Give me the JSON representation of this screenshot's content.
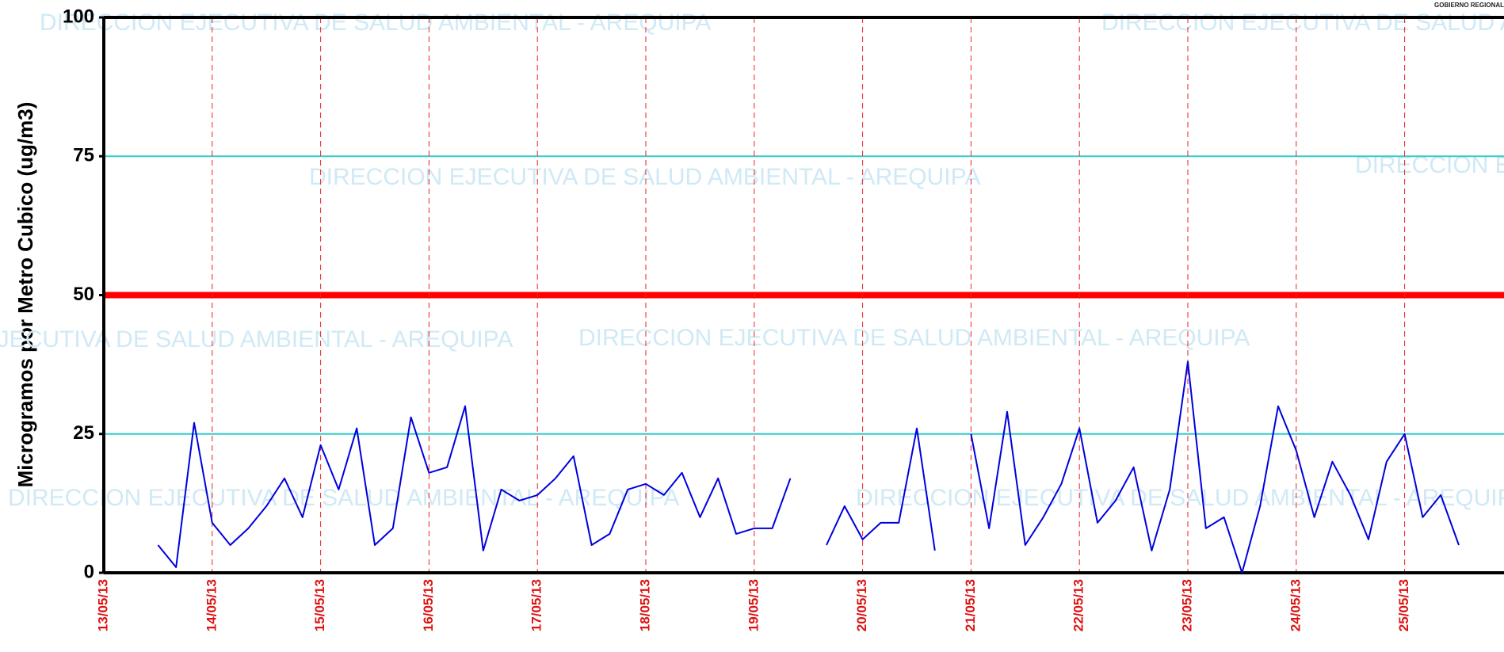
{
  "chart_data": {
    "type": "line",
    "ylabel": "Microgramos por Metro Cubico (ug/m3)",
    "watermark": "DIRECCION EJECUTIVA DE SALUD AMBIENTAL - AREQUIPA",
    "logo_text": "GOBIERNO REGIONAL",
    "categories": [
      "13/05/13",
      null,
      null,
      null,
      null,
      null,
      "14/05/13",
      null,
      null,
      null,
      null,
      null,
      "15/05/13",
      null,
      null,
      null,
      null,
      null,
      "16/05/13",
      null,
      null,
      null,
      null,
      null,
      "17/05/13",
      null,
      null,
      null,
      null,
      null,
      "18/05/13",
      null,
      null,
      null,
      null,
      null,
      "19/05/13",
      null,
      null,
      null,
      null,
      null,
      "20/05/13",
      null,
      null,
      null,
      null,
      null,
      "21/05/13",
      null,
      null,
      null,
      null,
      null,
      "22/05/13",
      null,
      null,
      null,
      null,
      null,
      "23/05/13",
      null,
      null,
      null,
      null,
      null,
      "24/05/13",
      null,
      null,
      null,
      null,
      null,
      "25/05/13",
      null,
      null,
      null,
      null,
      null
    ],
    "series": [
      {
        "color": "#0000dd",
        "values": [
          null,
          null,
          null,
          5,
          1,
          27,
          9,
          5,
          8,
          12,
          17,
          10,
          23,
          15,
          26,
          5,
          8,
          28,
          18,
          19,
          30,
          4,
          15,
          13,
          14,
          17,
          21,
          5,
          7,
          15,
          16,
          14,
          18,
          10,
          17,
          7,
          8,
          8,
          17,
          null,
          5,
          12,
          6,
          9,
          9,
          26,
          4,
          null,
          25,
          8,
          29,
          5,
          10,
          16,
          26,
          9,
          13,
          19,
          4,
          15,
          38,
          8,
          10,
          0,
          12,
          30,
          22,
          10,
          20,
          14,
          6,
          20,
          25,
          10,
          14,
          5,
          null,
          null
        ]
      }
    ],
    "reference_lines": [
      {
        "value": 50,
        "color": "#ff0000"
      },
      {
        "value": 25,
        "color": "#33cccc"
      },
      {
        "value": 75,
        "color": "#33cccc"
      }
    ],
    "ylim": [
      0,
      100
    ],
    "yticks": [
      0,
      25,
      50,
      75,
      100
    ],
    "xgrid_color": "#ee2222",
    "tick_label_color": "#dd1111"
  }
}
